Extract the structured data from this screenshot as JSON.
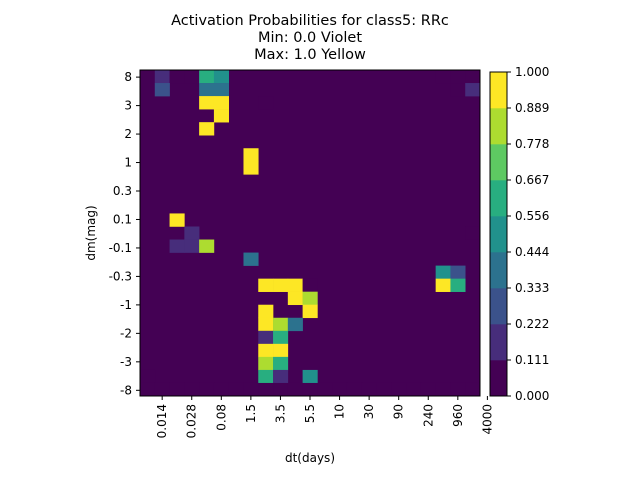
{
  "chart_data": {
    "type": "heatmap",
    "title_lines": [
      "Activation Probabilities for class5: RRc",
      "Min: 0.0 Violet",
      "Max: 1.0 Yellow"
    ],
    "xlabel": "dt(days)",
    "ylabel": "dm(mag)",
    "x_tick_labels": [
      "0.014",
      "0.028",
      "0.08",
      "1.5",
      "3.5",
      "5.5",
      "10",
      "30",
      "90",
      "240",
      "960",
      "4000"
    ],
    "y_tick_labels": [
      "8",
      "3",
      "2",
      "1",
      "0.3",
      "0.1",
      "-0.1",
      "-0.3",
      "-1",
      "-2",
      "-3",
      "-8"
    ],
    "n_cols": 23,
    "n_rows": 23,
    "cells": [
      [
        1,
        0,
        0.18
      ],
      [
        2,
        0,
        0.1
      ],
      [
        3,
        0,
        0.05
      ],
      [
        4,
        0,
        0.6
      ],
      [
        5,
        0,
        0.55
      ],
      [
        20,
        0,
        0.05
      ],
      [
        21,
        0,
        0.05
      ],
      [
        22,
        0,
        0.05
      ],
      [
        1,
        1,
        0.25
      ],
      [
        4,
        1,
        0.35
      ],
      [
        5,
        1,
        0.42
      ],
      [
        21,
        1,
        0.1
      ],
      [
        22,
        1,
        0.12
      ],
      [
        4,
        2,
        1.0
      ],
      [
        5,
        2,
        1.0
      ],
      [
        8,
        2,
        0.05
      ],
      [
        5,
        3,
        1.0
      ],
      [
        4,
        4,
        1.0
      ],
      [
        7,
        6,
        1.0
      ],
      [
        7,
        7,
        1.0
      ],
      [
        2,
        11,
        1.0
      ],
      [
        3,
        12,
        0.22
      ],
      [
        22,
        12,
        0.05
      ],
      [
        2,
        13,
        0.12
      ],
      [
        3,
        13,
        0.2
      ],
      [
        4,
        13,
        0.82
      ],
      [
        7,
        14,
        0.4
      ],
      [
        20,
        15,
        0.5
      ],
      [
        21,
        15,
        0.25
      ],
      [
        8,
        16,
        1.0
      ],
      [
        9,
        16,
        1.0
      ],
      [
        10,
        16,
        1.0
      ],
      [
        11,
        16,
        0.05
      ],
      [
        20,
        16,
        1.0
      ],
      [
        21,
        16,
        0.62
      ],
      [
        10,
        17,
        1.0
      ],
      [
        11,
        17,
        0.85
      ],
      [
        8,
        18,
        1.0
      ],
      [
        11,
        18,
        1.0
      ],
      [
        8,
        19,
        1.0
      ],
      [
        9,
        19,
        0.85
      ],
      [
        10,
        19,
        0.4
      ],
      [
        8,
        20,
        0.18
      ],
      [
        9,
        20,
        0.58
      ],
      [
        8,
        21,
        0.92
      ],
      [
        9,
        21,
        0.9
      ],
      [
        8,
        22,
        0.82
      ],
      [
        9,
        22,
        0.6
      ]
    ],
    "extra_rows": [
      {
        "row": 23,
        "cells": [
          [
            0,
            0.08
          ],
          [
            8,
            0.62
          ],
          [
            9,
            0.18
          ],
          [
            11,
            0.45
          ]
        ]
      },
      {
        "row": 24,
        "cells": [
          [
            0,
            0.05
          ],
          [
            1,
            0.05
          ],
          [
            2,
            0.05
          ],
          [
            3,
            0.05
          ],
          [
            4,
            0.05
          ],
          [
            5,
            0.05
          ],
          [
            6,
            0.05
          ],
          [
            7,
            0.05
          ],
          [
            8,
            0.05
          ],
          [
            9,
            0.05
          ],
          [
            10,
            0.05
          ],
          [
            11,
            0.05
          ],
          [
            12,
            0.05
          ],
          [
            13,
            0.05
          ],
          [
            14,
            0.05
          ],
          [
            15,
            0.05
          ],
          [
            16,
            0.05
          ],
          [
            17,
            0.05
          ],
          [
            18,
            0.05
          ],
          [
            19,
            0.05
          ],
          [
            20,
            0.05
          ],
          [
            21,
            0.05
          ],
          [
            22,
            0.05
          ]
        ]
      }
    ],
    "colorbar": {
      "tick_labels": [
        "1.000",
        "0.889",
        "0.778",
        "0.667",
        "0.556",
        "0.444",
        "0.333",
        "0.222",
        "0.111",
        "0.000"
      ],
      "levels": 9,
      "range": [
        0.0,
        1.0
      ]
    },
    "colors": [
      "#440154",
      "#472d7b",
      "#3b528b",
      "#2c728e",
      "#21918c",
      "#28ae80",
      "#5ec962",
      "#addc30",
      "#fde725"
    ]
  }
}
